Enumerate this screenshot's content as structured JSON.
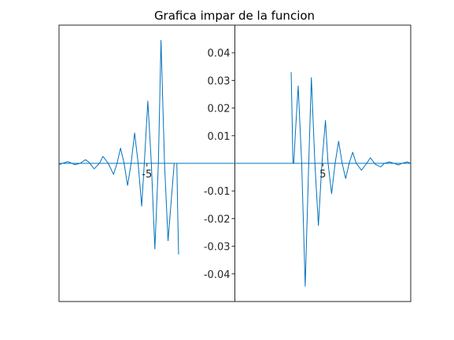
{
  "chart_data": {
    "type": "line",
    "title": "Grafica impar de la funcion",
    "xlabel": "",
    "ylabel": "",
    "xlim": [
      -10,
      10
    ],
    "ylim": [
      -0.05,
      0.05
    ],
    "axes_location": "origin",
    "grid": false,
    "legend": "none",
    "line_color": "#0072BD",
    "axis_color": "#262626",
    "x_ticks": [
      {
        "value": -5,
        "label": "-5"
      },
      {
        "value": 5,
        "label": "5"
      }
    ],
    "y_ticks": [
      {
        "value": 0.04,
        "label": "0.04"
      },
      {
        "value": 0.03,
        "label": "0.03"
      },
      {
        "value": 0.02,
        "label": "0.02"
      },
      {
        "value": 0.01,
        "label": "0.01"
      },
      {
        "value": -0.01,
        "label": "-0.01"
      },
      {
        "value": -0.02,
        "label": "-0.02"
      },
      {
        "value": -0.03,
        "label": "-0.03"
      },
      {
        "value": -0.04,
        "label": "-0.04"
      }
    ],
    "series": [
      {
        "segment": "negative-x",
        "x": [
          -10.0,
          -9.8,
          -9.5,
          -9.3,
          -9.1,
          -8.8,
          -8.5,
          -8.3,
          -8.0,
          -7.7,
          -7.5,
          -7.2,
          -6.9,
          -6.7,
          -6.5,
          -6.3,
          -6.1,
          -5.9,
          -5.7,
          -5.5,
          -5.3,
          -5.15,
          -4.95,
          -4.75,
          -4.55,
          -4.35,
          -4.2,
          -4.0,
          -3.8,
          -3.6,
          -3.45,
          -3.3,
          -3.25,
          -3.2
        ],
        "y": [
          -0.0005,
          0.0,
          0.0006,
          0.0001,
          -0.0005,
          0.0,
          0.0013,
          0.0004,
          -0.002,
          0.0,
          0.0025,
          0.0,
          -0.004,
          0.0,
          0.0055,
          0.0,
          -0.008,
          0.0,
          0.011,
          0.0,
          -0.0155,
          0.0,
          0.0225,
          0.0,
          -0.031,
          0.0,
          0.0445,
          0.0,
          -0.028,
          -0.012,
          0.0,
          0.0,
          -0.018,
          -0.033
        ]
      },
      {
        "segment": "positive-x",
        "x": [
          3.2,
          3.25,
          3.3,
          3.35,
          3.45,
          3.6,
          3.8,
          4.0,
          4.2,
          4.35,
          4.55,
          4.75,
          4.95,
          5.15,
          5.3,
          5.5,
          5.7,
          5.9,
          6.1,
          6.3,
          6.5,
          6.7,
          6.9,
          7.2,
          7.5,
          7.7,
          8.0,
          8.3,
          8.5,
          8.8,
          9.1,
          9.3,
          9.5,
          9.8,
          10.0
        ],
        "y": [
          0.033,
          0.018,
          0.0,
          0.0,
          0.012,
          0.028,
          0.0,
          -0.0445,
          0.0,
          0.031,
          0.0,
          -0.0225,
          0.0,
          0.0155,
          0.0,
          -0.011,
          0.0,
          0.008,
          0.0,
          -0.0055,
          0.0,
          0.004,
          0.0,
          -0.0025,
          0.0,
          0.002,
          -0.0004,
          -0.0013,
          0.0,
          0.0005,
          -0.0001,
          -0.0006,
          0.0,
          0.0005,
          0.0
        ]
      }
    ]
  }
}
